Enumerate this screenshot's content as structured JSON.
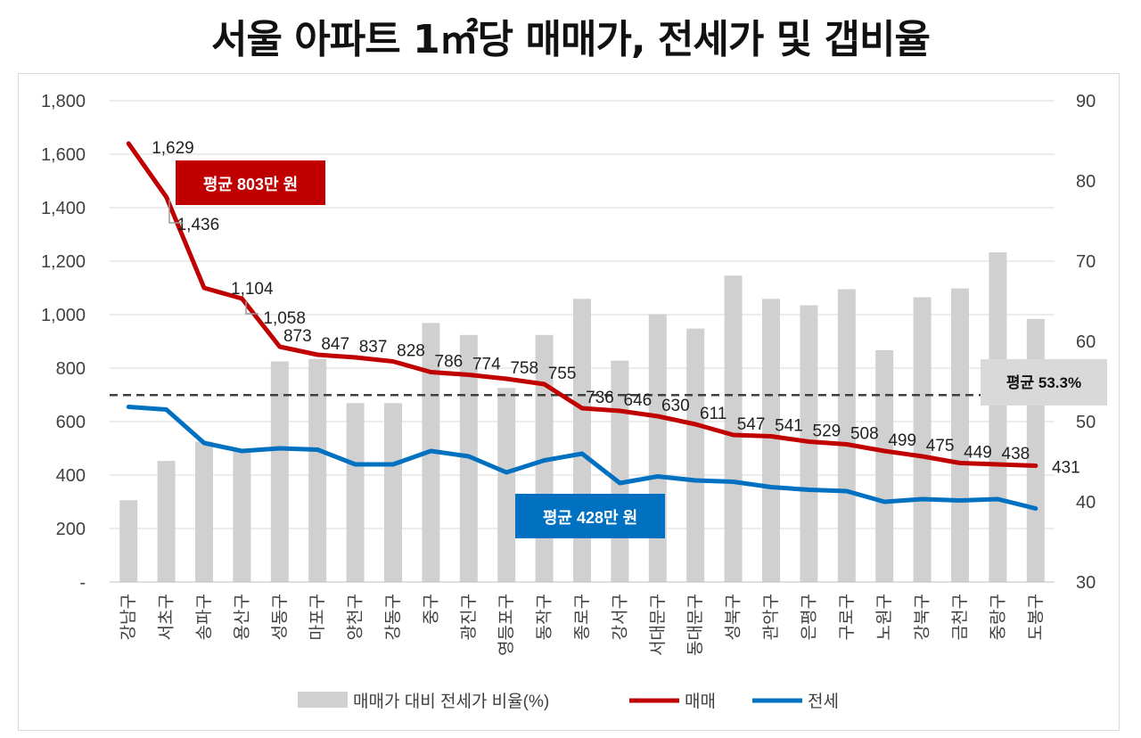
{
  "chart_data": {
    "type": "bar+line",
    "title": "서울 아파트 1㎡당 매매가, 전세가 및 갭비율",
    "categories": [
      "강남구",
      "서초구",
      "송파구",
      "용산구",
      "성동구",
      "마포구",
      "양천구",
      "강동구",
      "중구",
      "광진구",
      "영등포구",
      "동작구",
      "종로구",
      "강서구",
      "서대문구",
      "동대문구",
      "성북구",
      "관악구",
      "은평구",
      "구로구",
      "노원구",
      "강북구",
      "금천구",
      "중랑구",
      "도봉구"
    ],
    "ratio_series": {
      "name": "매매가 대비 전세가 비율(%)",
      "axis": "right",
      "values": [
        40.2,
        45.1,
        47.5,
        46.5,
        57.5,
        57.8,
        52.3,
        52.3,
        62.3,
        60.8,
        54.2,
        60.8,
        65.3,
        57.6,
        63.4,
        61.6,
        68.2,
        65.3,
        64.5,
        66.5,
        58.9,
        65.5,
        66.6,
        71.1,
        62.8
      ]
    },
    "sale_series": {
      "name": "매매",
      "color": "#c00000",
      "axis": "left",
      "values": [
        1629,
        1436,
        1104,
        1058,
        873,
        847,
        837,
        828,
        786,
        774,
        758,
        755,
        736,
        646,
        630,
        611,
        547,
        541,
        529,
        508,
        499,
        475,
        449,
        438,
        431
      ],
      "plot_values": [
        1640,
        1440,
        1100,
        1060,
        880,
        850,
        840,
        825,
        785,
        775,
        760,
        740,
        650,
        640,
        620,
        590,
        550,
        545,
        525,
        515,
        490,
        470,
        445,
        440,
        435
      ],
      "labels": [
        "1,629",
        "1,436",
        "1,104",
        "1,058",
        "873",
        "847",
        "837",
        "828",
        "786",
        "774",
        "758",
        "755",
        "736",
        "646",
        "630",
        "611",
        "547",
        "541",
        "529",
        "508",
        "499",
        "475",
        "449",
        "438",
        "431"
      ]
    },
    "jeonse_series": {
      "name": "전세",
      "color": "#0070c0",
      "axis": "left",
      "values": [
        655,
        645,
        520,
        490,
        500,
        495,
        440,
        440,
        490,
        470,
        410,
        455,
        480,
        370,
        395,
        380,
        375,
        355,
        345,
        340,
        300,
        310,
        305,
        310,
        275
      ]
    },
    "left_axis": {
      "ylim": [
        0,
        1800
      ],
      "ticks": [
        "-",
        "200",
        "400",
        "600",
        "800",
        "1,000",
        "1,200",
        "1,400",
        "1,600",
        "1,800"
      ]
    },
    "right_axis": {
      "ylim": [
        30,
        90
      ],
      "ticks": [
        "30",
        "40",
        "50",
        "60",
        "70",
        "80",
        "90"
      ]
    },
    "average_ratio": {
      "value": 53.3,
      "label": "평균 53.3%"
    },
    "callouts": {
      "sale_average": "평균 803만 원",
      "jeonse_average": "평균 428만 원"
    },
    "legend": {
      "position": "bottom-center",
      "items": [
        "매매가 대비 전세가 비율(%)",
        "매매",
        "전세"
      ]
    }
  },
  "colors": {
    "bar": "#d0d0d0",
    "sale": "#c00000",
    "jeonse": "#0070c0",
    "average_box": "#d9d9d9",
    "grid": "#d9d9d9"
  }
}
